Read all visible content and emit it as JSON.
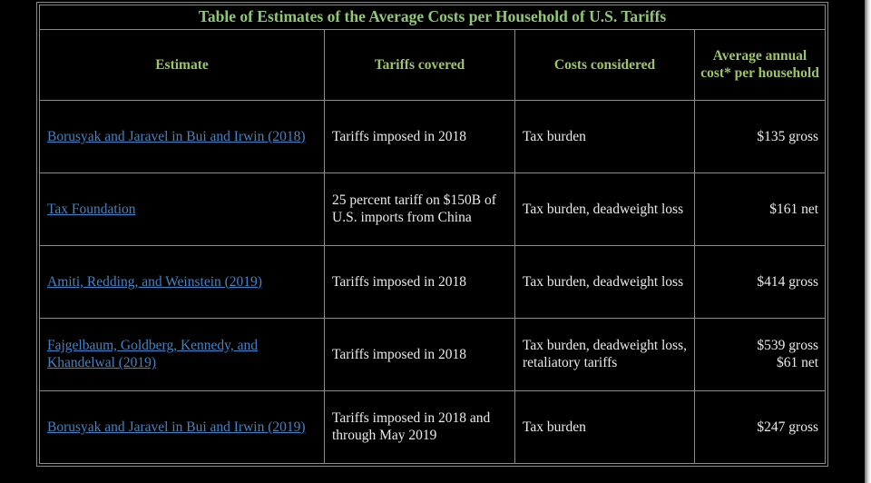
{
  "colors": {
    "background": "#000000",
    "title_green": "#8fc873",
    "header_green": "#9cc468",
    "link_blue": "#4283c4",
    "body_text": "#eaeaea",
    "border_gray": "#8a8a8a",
    "scrollbar_track": "#d9d9d9"
  },
  "table": {
    "title": "Table of Estimates of the Average Costs per Household of U.S. Tariffs",
    "columns": [
      "Estimate",
      "Tariffs covered",
      "Costs considered",
      "Average annual cost* per household"
    ],
    "rows": [
      {
        "estimate": "Borusyak and Jaravel in Bui and Irwin (2018)",
        "tariffs": "Tariffs imposed in 2018",
        "costs": "Tax burden",
        "cost_lines": [
          "$135 gross"
        ]
      },
      {
        "estimate": "Tax Foundation",
        "tariffs": "25 percent tariff on $150B of U.S. imports from China",
        "costs": "Tax burden, deadweight loss",
        "cost_lines": [
          "$161 net"
        ]
      },
      {
        "estimate": "Amiti, Redding, and Weinstein (2019)",
        "tariffs": "Tariffs imposed in 2018",
        "costs": "Tax burden, deadweight loss",
        "cost_lines": [
          "$414 gross"
        ]
      },
      {
        "estimate": "Fajgelbaum, Goldberg, Kennedy, and Khandelwal (2019)",
        "tariffs": "Tariffs imposed in 2018",
        "costs": "Tax burden, deadweight loss, retaliatory tariffs",
        "cost_lines": [
          "$539 gross",
          "$61 net"
        ]
      },
      {
        "estimate": "Borusyak and Jaravel in Bui and Irwin (2019)",
        "tariffs": "Tariffs imposed in 2018 and through May 2019",
        "costs": "Tax burden",
        "cost_lines": [
          "$247 gross"
        ]
      }
    ]
  }
}
